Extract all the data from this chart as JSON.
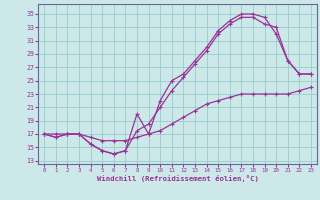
{
  "xlabel": "Windchill (Refroidissement éolien,°C)",
  "bg_color": "#cce8e8",
  "grid_color": "#99cccc",
  "line_color": "#993399",
  "spine_color": "#666699",
  "xlim": [
    -0.5,
    23.5
  ],
  "ylim": [
    12.5,
    36.5
  ],
  "xticks": [
    0,
    1,
    2,
    3,
    4,
    5,
    6,
    7,
    8,
    9,
    10,
    11,
    12,
    13,
    14,
    15,
    16,
    17,
    18,
    19,
    20,
    21,
    22,
    23
  ],
  "yticks": [
    13,
    15,
    17,
    19,
    21,
    23,
    25,
    27,
    29,
    31,
    33,
    35
  ],
  "curve1_x": [
    0,
    1,
    2,
    3,
    4,
    5,
    6,
    7,
    8,
    9,
    10,
    11,
    12,
    13,
    14,
    15,
    16,
    17,
    18,
    19,
    20,
    21,
    22,
    23
  ],
  "curve1_y": [
    17,
    16.5,
    17,
    17,
    15.5,
    14.5,
    14,
    14.5,
    20,
    17,
    22,
    25,
    26,
    28,
    30,
    32.5,
    34,
    35,
    35,
    34.5,
    32,
    28,
    26,
    26
  ],
  "curve2_x": [
    0,
    1,
    2,
    3,
    4,
    5,
    6,
    7,
    8,
    9,
    10,
    11,
    12,
    13,
    14,
    15,
    16,
    17,
    18,
    19,
    20,
    21,
    22,
    23
  ],
  "curve2_y": [
    17,
    16.5,
    17,
    17,
    15.5,
    14.5,
    14,
    14.5,
    17.5,
    18.5,
    21,
    23.5,
    25.5,
    27.5,
    29.5,
    32,
    33.5,
    34.5,
    34.5,
    33.5,
    33,
    28,
    26,
    26
  ],
  "curve3_x": [
    0,
    1,
    2,
    3,
    4,
    5,
    6,
    7,
    8,
    9,
    10,
    11,
    12,
    13,
    14,
    15,
    16,
    17,
    18,
    19,
    20,
    21,
    22,
    23
  ],
  "curve3_y": [
    17,
    17,
    17,
    17,
    16.5,
    16,
    16,
    16,
    16.5,
    17,
    17.5,
    18.5,
    19.5,
    20.5,
    21.5,
    22,
    22.5,
    23,
    23,
    23,
    23,
    23,
    23.5,
    24
  ]
}
